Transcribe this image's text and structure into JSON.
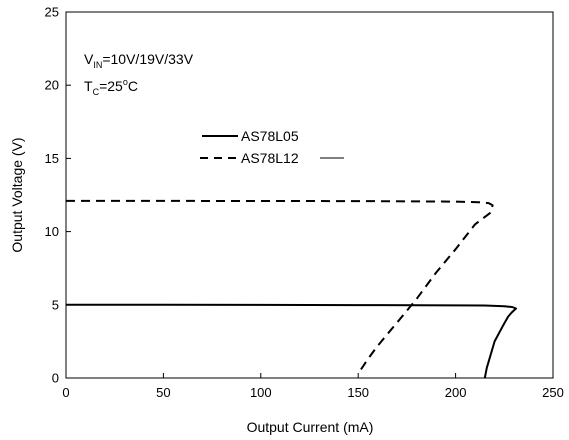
{
  "chart_data": {
    "type": "line",
    "xlabel": "Output Current (mA)",
    "ylabel": "Output Voltage (V)",
    "xlim": [
      0,
      250
    ],
    "ylim": [
      0,
      25
    ],
    "xticks": [
      "0",
      "50",
      "100",
      "150",
      "200",
      "250"
    ],
    "yticks": [
      "0",
      "5",
      "10",
      "15",
      "20",
      "25"
    ],
    "grid": false,
    "legend_position": "center",
    "annotations": {
      "vin_main": "V",
      "vin_sub": "IN",
      "vin_value": "=10V/19V/33V",
      "tc_main": "T",
      "tc_sub": "C",
      "tc_value": "=25",
      "tc_degree": "o",
      "tc_unit": "C"
    },
    "series": [
      {
        "name": "AS78L05",
        "style": "solid",
        "x": [
          0,
          50,
          100,
          150,
          200,
          215,
          225,
          229,
          231,
          229,
          227,
          224,
          220,
          218,
          216,
          215
        ],
        "y": [
          5.0,
          5.0,
          4.99,
          4.98,
          4.96,
          4.95,
          4.9,
          4.85,
          4.75,
          4.5,
          4.2,
          3.5,
          2.5,
          1.6,
          0.7,
          0.0
        ]
      },
      {
        "name": "AS78L12",
        "style": "dashed",
        "x": [
          0,
          50,
          100,
          150,
          200,
          212,
          217,
          219,
          218,
          210,
          200,
          190,
          180,
          170,
          160,
          155,
          151
        ],
        "y": [
          12.1,
          12.1,
          12.09,
          12.08,
          12.05,
          12.0,
          11.95,
          11.8,
          11.3,
          10.5,
          8.8,
          7.2,
          5.4,
          3.8,
          2.2,
          1.3,
          0.5
        ]
      }
    ]
  }
}
